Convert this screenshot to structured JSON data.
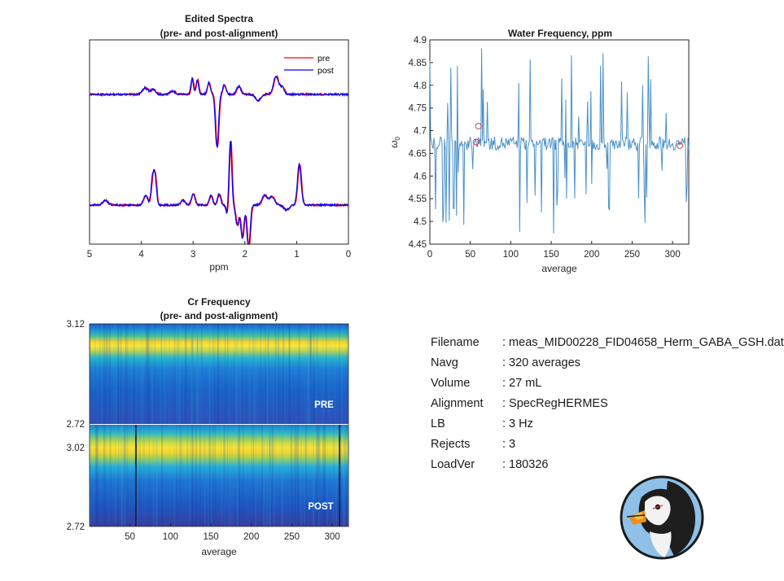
{
  "chart_data": [
    {
      "type": "line",
      "title": "Edited Spectra",
      "subtitle": "(pre- and post-alignment)",
      "xlabel": "ppm",
      "ylabel": "",
      "xlim": [
        5,
        0
      ],
      "x_reversed": true,
      "xticks": [
        "5",
        "4",
        "3",
        "2",
        "1",
        "0"
      ],
      "legend": {
        "position": "top-right",
        "entries": [
          "pre",
          "post"
        ]
      },
      "series": [
        {
          "name": "pre",
          "color": "#ff0000"
        },
        {
          "name": "post",
          "color": "#0000ff"
        }
      ]
    },
    {
      "type": "line",
      "title": "Water Frequency, ppm",
      "xlabel": "average",
      "ylabel": "ω0",
      "xlim": [
        0,
        320
      ],
      "ylim": [
        4.45,
        4.9
      ],
      "xticks": [
        "0",
        "50",
        "100",
        "150",
        "200",
        "250",
        "300"
      ],
      "yticks": [
        "4.45",
        "4.5",
        "4.55",
        "4.6",
        "4.65",
        "4.7",
        "4.75",
        "4.8",
        "4.85",
        "4.9"
      ],
      "line_color": "#4a90c8",
      "baseline": 4.672,
      "outliers": [
        {
          "x": 57,
          "y": 4.675
        },
        {
          "x": 60,
          "y": 4.71
        },
        {
          "x": 309,
          "y": 4.667
        }
      ]
    },
    {
      "type": "heatmap",
      "title": "Cr Frequency",
      "subtitle": "(pre- and post-alignment)",
      "xlabel": "average",
      "xlim": [
        0,
        320
      ],
      "xticks": [
        "50",
        "100",
        "150",
        "200",
        "250",
        "300"
      ],
      "panels": [
        {
          "label": "PRE",
          "yticks": [
            "3.12",
            "2.72"
          ]
        },
        {
          "label": "POST",
          "yticks": [
            "3.02",
            "2.72"
          ]
        }
      ]
    }
  ],
  "info": [
    {
      "key": "Filename",
      "value": ": meas_MID00228_FID04658_Herm_GABA_GSH.dat"
    },
    {
      "key": "Navg",
      "value": ": 320 averages"
    },
    {
      "key": "Volume",
      "value": ": 27 mL"
    },
    {
      "key": "Alignment",
      "value": ": SpecRegHERMES"
    },
    {
      "key": "LB",
      "value": ": 3 Hz"
    },
    {
      "key": "Rejects",
      "value": ": 3"
    },
    {
      "key": "LoadVer",
      "value": ": 180326"
    }
  ]
}
